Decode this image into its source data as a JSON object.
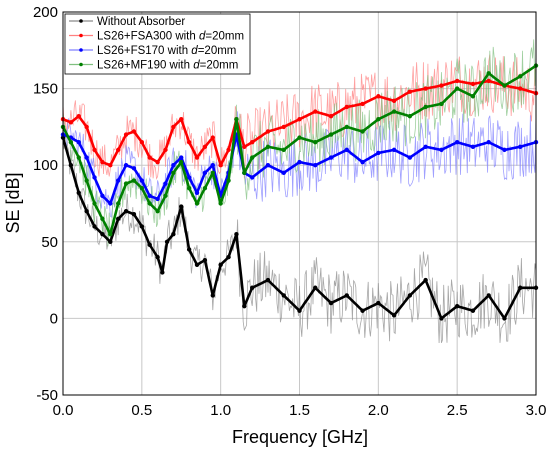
{
  "chart_data": {
    "type": "line",
    "title": "",
    "xlabel": "Frequency [GHz]",
    "ylabel": "SE [dB]",
    "xlim": [
      0.0,
      3.0
    ],
    "ylim": [
      -50,
      200
    ],
    "xticks": [
      "0.0",
      "0.5",
      "1.0",
      "1.5",
      "2.0",
      "2.5",
      "3.0"
    ],
    "xtick_values": [
      0.0,
      0.5,
      1.0,
      1.5,
      2.0,
      2.5,
      3.0
    ],
    "yticks": [
      "-50",
      "0",
      "50",
      "100",
      "150",
      "200"
    ],
    "ytick_values": [
      -50,
      0,
      50,
      100,
      150,
      200
    ],
    "grid": true,
    "legend_position": "top-left",
    "series": [
      {
        "name_prefix": "Without Absorber",
        "name_suffix": "",
        "color": "#000000",
        "raw_color": "#8a8a8a",
        "x": [
          0.0,
          0.05,
          0.1,
          0.15,
          0.2,
          0.25,
          0.3,
          0.35,
          0.4,
          0.45,
          0.5,
          0.55,
          0.6,
          0.63,
          0.66,
          0.7,
          0.75,
          0.8,
          0.85,
          0.9,
          0.95,
          1.0,
          1.05,
          1.1,
          1.15,
          1.2,
          1.3,
          1.4,
          1.5,
          1.6,
          1.7,
          1.8,
          1.9,
          2.0,
          2.1,
          2.2,
          2.3,
          2.4,
          2.5,
          2.6,
          2.7,
          2.8,
          2.9,
          3.0
        ],
        "values": [
          118,
          100,
          82,
          70,
          60,
          55,
          50,
          65,
          70,
          68,
          60,
          48,
          40,
          30,
          50,
          55,
          73,
          45,
          35,
          38,
          15,
          35,
          40,
          55,
          8,
          20,
          25,
          15,
          5,
          20,
          10,
          15,
          5,
          10,
          2,
          15,
          25,
          0,
          8,
          5,
          15,
          0,
          20,
          20
        ]
      },
      {
        "name_prefix": "LS26+FSA300 with ",
        "name_suffix": "=20mm",
        "color": "#ff0000",
        "raw_color": "#ff8080",
        "x": [
          0.0,
          0.05,
          0.1,
          0.15,
          0.2,
          0.25,
          0.3,
          0.35,
          0.4,
          0.45,
          0.5,
          0.55,
          0.6,
          0.65,
          0.7,
          0.75,
          0.8,
          0.85,
          0.9,
          0.95,
          1.0,
          1.05,
          1.1,
          1.15,
          1.2,
          1.3,
          1.4,
          1.5,
          1.6,
          1.7,
          1.8,
          1.9,
          2.0,
          2.1,
          2.2,
          2.3,
          2.4,
          2.5,
          2.6,
          2.7,
          2.8,
          2.9,
          3.0
        ],
        "values": [
          130,
          128,
          132,
          125,
          110,
          102,
          100,
          110,
          120,
          122,
          115,
          105,
          102,
          110,
          125,
          130,
          115,
          105,
          112,
          118,
          100,
          110,
          130,
          112,
          115,
          122,
          125,
          130,
          135,
          132,
          138,
          140,
          145,
          142,
          148,
          150,
          152,
          155,
          153,
          155,
          152,
          150,
          147
        ]
      },
      {
        "name_prefix": "LS26+FS170 with ",
        "name_suffix": "=20mm",
        "color": "#0000ff",
        "raw_color": "#8080ff",
        "x": [
          0.0,
          0.05,
          0.1,
          0.15,
          0.2,
          0.25,
          0.3,
          0.35,
          0.4,
          0.45,
          0.5,
          0.55,
          0.6,
          0.65,
          0.7,
          0.75,
          0.8,
          0.85,
          0.9,
          0.95,
          1.0,
          1.05,
          1.1,
          1.15,
          1.2,
          1.3,
          1.4,
          1.5,
          1.6,
          1.7,
          1.8,
          1.9,
          2.0,
          2.1,
          2.2,
          2.3,
          2.4,
          2.5,
          2.6,
          2.7,
          2.8,
          2.9,
          3.0
        ],
        "values": [
          120,
          118,
          115,
          105,
          92,
          80,
          75,
          90,
          100,
          98,
          90,
          80,
          78,
          88,
          100,
          105,
          92,
          82,
          95,
          100,
          80,
          95,
          120,
          95,
          92,
          100,
          95,
          102,
          100,
          105,
          110,
          102,
          108,
          110,
          105,
          112,
          110,
          115,
          112,
          115,
          110,
          112,
          115
        ]
      },
      {
        "name_prefix": "LS26+MF190 with ",
        "name_suffix": "=20mm",
        "color": "#008000",
        "raw_color": "#80c080",
        "x": [
          0.0,
          0.05,
          0.1,
          0.15,
          0.2,
          0.25,
          0.3,
          0.35,
          0.4,
          0.45,
          0.5,
          0.55,
          0.6,
          0.65,
          0.7,
          0.75,
          0.8,
          0.85,
          0.9,
          0.95,
          1.0,
          1.05,
          1.1,
          1.15,
          1.2,
          1.3,
          1.4,
          1.5,
          1.6,
          1.7,
          1.8,
          1.9,
          2.0,
          2.1,
          2.2,
          2.3,
          2.4,
          2.5,
          2.6,
          2.7,
          2.8,
          2.9,
          3.0
        ],
        "values": [
          125,
          115,
          105,
          90,
          75,
          65,
          55,
          75,
          88,
          90,
          85,
          75,
          70,
          80,
          95,
          102,
          85,
          75,
          85,
          95,
          75,
          90,
          130,
          95,
          105,
          112,
          110,
          118,
          115,
          120,
          125,
          122,
          130,
          135,
          132,
          138,
          140,
          150,
          145,
          160,
          152,
          158,
          165
        ]
      }
    ]
  }
}
